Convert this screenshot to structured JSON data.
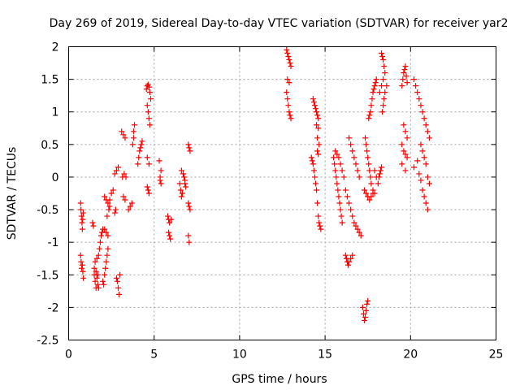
{
  "chart_data": {
    "type": "scatter",
    "title": "Day 269 of 2019, Sidereal Day-to-day VTEC variation (SDTVAR) for receiver yar2",
    "xlabel": "GPS time / hours",
    "ylabel": "SDTVAR / TECUs",
    "xlim": [
      0,
      25
    ],
    "ylim": [
      -2.5,
      2
    ],
    "xticks": [
      0,
      5,
      10,
      15,
      20,
      25
    ],
    "xtick_labels": [
      "0",
      "5",
      "10",
      "15",
      "20",
      "25"
    ],
    "yticks": [
      -2.5,
      -2,
      -1.5,
      -1,
      -0.5,
      0,
      0.5,
      1,
      1.5,
      2
    ],
    "ytick_labels": [
      "-2.5",
      "-2",
      "-1.5",
      "-1",
      "-0.5",
      "0",
      "0.5",
      "1",
      "1.5",
      "2"
    ],
    "grid": true,
    "marker": "+",
    "color": "#ff0000",
    "series": [
      {
        "name": "yar2",
        "x": [
          0.7,
          0.72,
          0.75,
          0.78,
          0.8,
          0.82,
          0.85,
          0.7,
          0.73,
          0.76,
          0.8,
          0.83,
          0.86,
          1.4,
          1.45,
          1.5,
          1.55,
          1.6,
          1.65,
          1.7,
          1.75,
          1.5,
          1.6,
          1.7,
          1.55,
          1.65,
          1.75,
          1.8,
          1.85,
          1.9,
          1.95,
          2.0,
          2.0,
          2.05,
          2.1,
          2.15,
          2.2,
          2.25,
          2.3,
          2.1,
          2.2,
          2.3,
          2.25,
          2.35,
          2.4,
          2.1,
          2.2,
          2.3,
          2.4,
          2.5,
          2.6,
          2.7,
          2.8,
          2.9,
          2.7,
          2.75,
          2.8,
          2.85,
          2.9,
          2.95,
          3.0,
          3.1,
          3.2,
          3.3,
          3.15,
          3.25,
          3.35,
          3.2,
          3.3,
          3.5,
          3.6,
          3.7,
          3.75,
          3.8,
          3.8,
          3.85,
          4.05,
          4.1,
          4.15,
          4.2,
          4.25,
          4.3,
          4.55,
          4.6,
          4.65,
          4.7,
          4.75,
          4.8,
          4.6,
          4.65,
          4.7,
          4.75,
          4.6,
          4.7,
          4.6,
          4.65,
          4.7,
          5.3,
          5.35,
          5.4,
          5.35,
          5.4,
          5.8,
          5.85,
          5.9,
          5.85,
          5.9,
          5.95,
          6.0,
          6.5,
          6.55,
          6.6,
          6.65,
          6.7,
          6.75,
          6.8,
          6.6,
          6.7,
          6.8,
          6.85,
          7.0,
          7.05,
          7.1,
          7.0,
          7.05,
          7.1,
          7.0,
          7.05,
          12.75,
          12.8,
          12.85,
          12.9,
          12.95,
          13.0,
          12.75,
          12.8,
          12.85,
          12.9,
          12.95,
          13.0,
          12.8,
          12.9,
          14.2,
          14.25,
          14.3,
          14.35,
          14.4,
          14.45,
          14.5,
          14.55,
          14.6,
          14.65,
          14.7,
          14.75,
          14.3,
          14.35,
          14.4,
          14.45,
          14.5,
          14.55,
          14.6,
          14.5,
          14.6,
          14.55,
          14.65,
          14.55,
          14.6,
          15.5,
          15.55,
          15.6,
          15.65,
          15.7,
          15.75,
          15.8,
          15.85,
          15.9,
          15.95,
          16.0,
          15.6,
          15.7,
          15.8,
          15.9,
          16.0,
          16.1,
          16.2,
          16.3,
          16.4,
          16.5,
          16.6,
          16.7,
          16.8,
          16.9,
          17.0,
          17.1,
          16.4,
          16.5,
          16.6,
          16.7,
          16.8,
          16.9,
          17.0,
          16.2,
          16.25,
          16.3,
          16.35,
          16.4,
          16.5,
          16.6,
          17.2,
          17.25,
          17.3,
          17.35,
          17.4,
          17.45,
          17.5,
          17.55,
          17.6,
          17.65,
          17.7,
          17.75,
          17.8,
          17.85,
          17.9,
          17.95,
          18.0,
          17.35,
          17.4,
          17.45,
          17.5,
          17.55,
          17.6,
          17.65,
          17.7,
          17.3,
          17.4,
          17.5,
          17.6,
          17.7,
          17.8,
          18.1,
          18.15,
          18.2,
          18.25,
          18.3,
          18.35,
          18.4,
          18.45,
          18.5,
          18.3,
          18.35,
          18.4,
          18.45,
          18.2,
          18.3,
          18.4,
          18.5,
          18.6,
          17.9,
          18.0,
          17.8,
          17.9,
          19.5,
          19.55,
          19.6,
          19.65,
          19.7,
          19.75,
          19.8,
          19.6,
          19.7,
          19.8,
          19.5,
          19.6,
          19.7,
          19.8,
          19.5,
          19.7,
          20.2,
          20.3,
          20.4,
          20.5,
          20.6,
          20.7,
          20.8,
          20.9,
          21.0,
          21.1,
          20.6,
          20.7,
          20.8,
          20.9,
          21.0,
          21.1,
          20.7,
          20.8,
          20.9,
          21.0,
          20.5,
          20.6,
          20.2,
          20.4
        ],
        "y": [
          -0.4,
          -0.5,
          -0.6,
          -0.7,
          -0.8,
          -0.65,
          -0.55,
          -1.2,
          -1.3,
          -1.4,
          -1.35,
          -1.45,
          -1.55,
          -0.7,
          -0.75,
          -1.5,
          -1.6,
          -1.7,
          -1.55,
          -1.65,
          -1.7,
          -1.4,
          -1.45,
          -1.5,
          -1.3,
          -1.25,
          -1.2,
          -1.1,
          -1.0,
          -0.9,
          -0.85,
          -0.8,
          -1.6,
          -1.65,
          -1.5,
          -1.4,
          -1.3,
          -1.2,
          -1.1,
          -0.8,
          -0.85,
          -0.9,
          -0.6,
          -0.5,
          -0.45,
          -0.3,
          -0.35,
          -0.4,
          -0.35,
          -0.25,
          -0.2,
          0.05,
          0.1,
          0.15,
          -0.55,
          -0.5,
          -1.55,
          -1.6,
          -1.7,
          -1.8,
          -1.5,
          0.7,
          0.65,
          0.6,
          0.0,
          0.05,
          0.0,
          -0.3,
          -0.35,
          -0.5,
          -0.45,
          -0.4,
          0.5,
          0.6,
          0.7,
          0.8,
          0.2,
          0.3,
          0.4,
          0.45,
          0.5,
          0.55,
          1.35,
          1.4,
          1.42,
          1.38,
          1.3,
          1.2,
          1.1,
          1.0,
          0.9,
          0.8,
          0.3,
          0.2,
          -0.15,
          -0.2,
          -0.25,
          0.25,
          0.0,
          -0.1,
          -0.05,
          0.1,
          -0.6,
          -0.65,
          -0.7,
          -0.85,
          -0.9,
          -0.95,
          -0.65,
          -0.1,
          -0.2,
          -0.3,
          -0.25,
          0.05,
          0.0,
          -0.05,
          0.1,
          0.05,
          -0.1,
          -0.15,
          0.5,
          0.45,
          0.4,
          -0.4,
          -0.45,
          -0.5,
          -0.9,
          -1.0,
          1.95,
          1.9,
          1.85,
          1.8,
          1.75,
          1.7,
          1.3,
          1.2,
          1.1,
          1.0,
          0.95,
          0.9,
          1.5,
          1.45,
          0.3,
          0.25,
          0.2,
          0.1,
          0.0,
          -0.1,
          -0.2,
          -0.4,
          -0.6,
          -0.7,
          -0.75,
          -0.8,
          1.2,
          1.15,
          1.1,
          1.05,
          1.0,
          0.95,
          0.9,
          0.8,
          0.75,
          0.6,
          0.5,
          0.4,
          0.35,
          0.3,
          0.2,
          0.1,
          0.0,
          -0.1,
          -0.2,
          -0.3,
          -0.4,
          -0.5,
          -0.6,
          -0.7,
          0.4,
          0.35,
          0.3,
          0.2,
          0.1,
          0.0,
          -0.2,
          -0.3,
          -0.4,
          -0.5,
          -0.6,
          -0.7,
          -0.75,
          -0.8,
          -0.85,
          -0.9,
          0.6,
          0.5,
          0.4,
          0.3,
          0.2,
          0.1,
          0.0,
          -1.2,
          -1.25,
          -1.3,
          -1.35,
          -1.3,
          -1.25,
          -1.2,
          -2.0,
          -2.1,
          -2.2,
          -2.15,
          -2.05,
          -1.95,
          -1.9,
          0.9,
          0.95,
          1.0,
          1.1,
          1.2,
          1.3,
          1.35,
          1.4,
          1.45,
          1.5,
          0.6,
          0.5,
          0.4,
          0.3,
          0.2,
          0.1,
          0.0,
          -0.1,
          -0.2,
          -0.25,
          -0.3,
          -0.35,
          -0.3,
          -0.25,
          -0.1,
          0.0,
          0.05,
          0.1,
          0.15,
          1.0,
          1.1,
          1.2,
          1.3,
          1.9,
          1.85,
          1.8,
          1.7,
          1.3,
          1.4,
          1.5,
          1.6,
          1.4,
          0.1,
          0.0,
          -0.2,
          -0.25,
          1.4,
          1.5,
          1.6,
          1.65,
          1.7,
          1.55,
          1.45,
          0.8,
          0.7,
          0.6,
          0.5,
          0.4,
          0.35,
          0.3,
          0.2,
          0.1,
          1.5,
          1.4,
          1.3,
          1.2,
          1.1,
          1.0,
          0.9,
          0.8,
          0.7,
          0.6,
          0.5,
          0.4,
          0.3,
          0.2,
          0.0,
          -0.1,
          -0.2,
          -0.3,
          -0.4,
          -0.5,
          0.05,
          -0.05,
          0.15,
          0.25
        ]
      }
    ]
  }
}
